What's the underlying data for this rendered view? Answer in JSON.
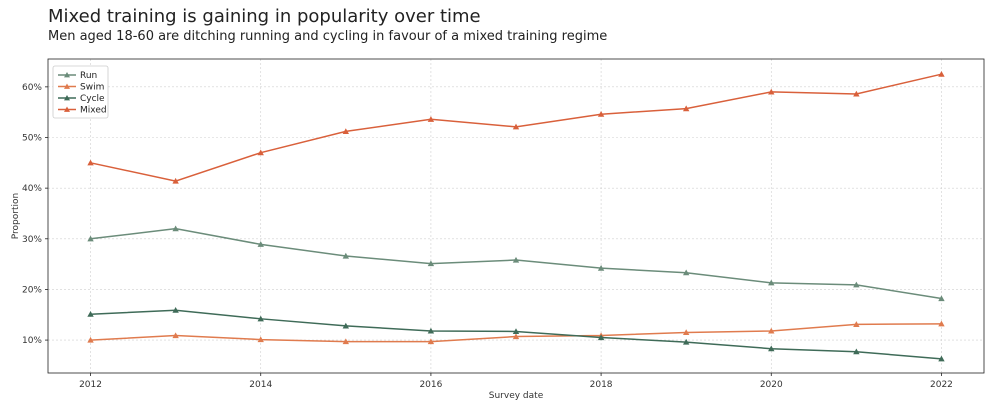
{
  "chart_data": {
    "type": "line",
    "title": "Mixed training is gaining in popularity over time",
    "subtitle": "Men aged 18-60 are ditching running and cycling in favour of a mixed training regime",
    "xlabel": "Survey date",
    "ylabel": "Proportion",
    "x": [
      2012,
      2013,
      2014,
      2015,
      2016,
      2017,
      2018,
      2019,
      2020,
      2021,
      2022
    ],
    "xlim": [
      2011.5,
      2022.5
    ],
    "ylim": [
      3.5,
      65.5
    ],
    "xticks": [
      2012,
      2014,
      2016,
      2018,
      2020,
      2022
    ],
    "yticks": [
      10,
      20,
      30,
      40,
      50,
      60
    ],
    "ytick_format": "%",
    "grid": true,
    "legend_position": "top-left",
    "series": [
      {
        "name": "Run",
        "color": "#6b8c7a",
        "marker": "triangle",
        "values": [
          30.0,
          32.0,
          28.9,
          26.6,
          25.1,
          25.8,
          24.2,
          23.3,
          21.3,
          20.9,
          18.2
        ]
      },
      {
        "name": "Swim",
        "color": "#e07b4e",
        "marker": "triangle",
        "values": [
          10.0,
          10.9,
          10.1,
          9.7,
          9.7,
          10.7,
          10.9,
          11.5,
          11.8,
          13.1,
          13.2
        ]
      },
      {
        "name": "Cycle",
        "color": "#3f6b58",
        "marker": "triangle",
        "values": [
          15.1,
          15.9,
          14.2,
          12.8,
          11.8,
          11.7,
          10.5,
          9.6,
          8.3,
          7.7,
          6.3
        ]
      },
      {
        "name": "Mixed",
        "color": "#d9603b",
        "marker": "triangle",
        "values": [
          45.0,
          41.4,
          47.0,
          51.2,
          53.6,
          52.1,
          54.6,
          55.7,
          59.0,
          58.6,
          62.5
        ]
      }
    ]
  }
}
